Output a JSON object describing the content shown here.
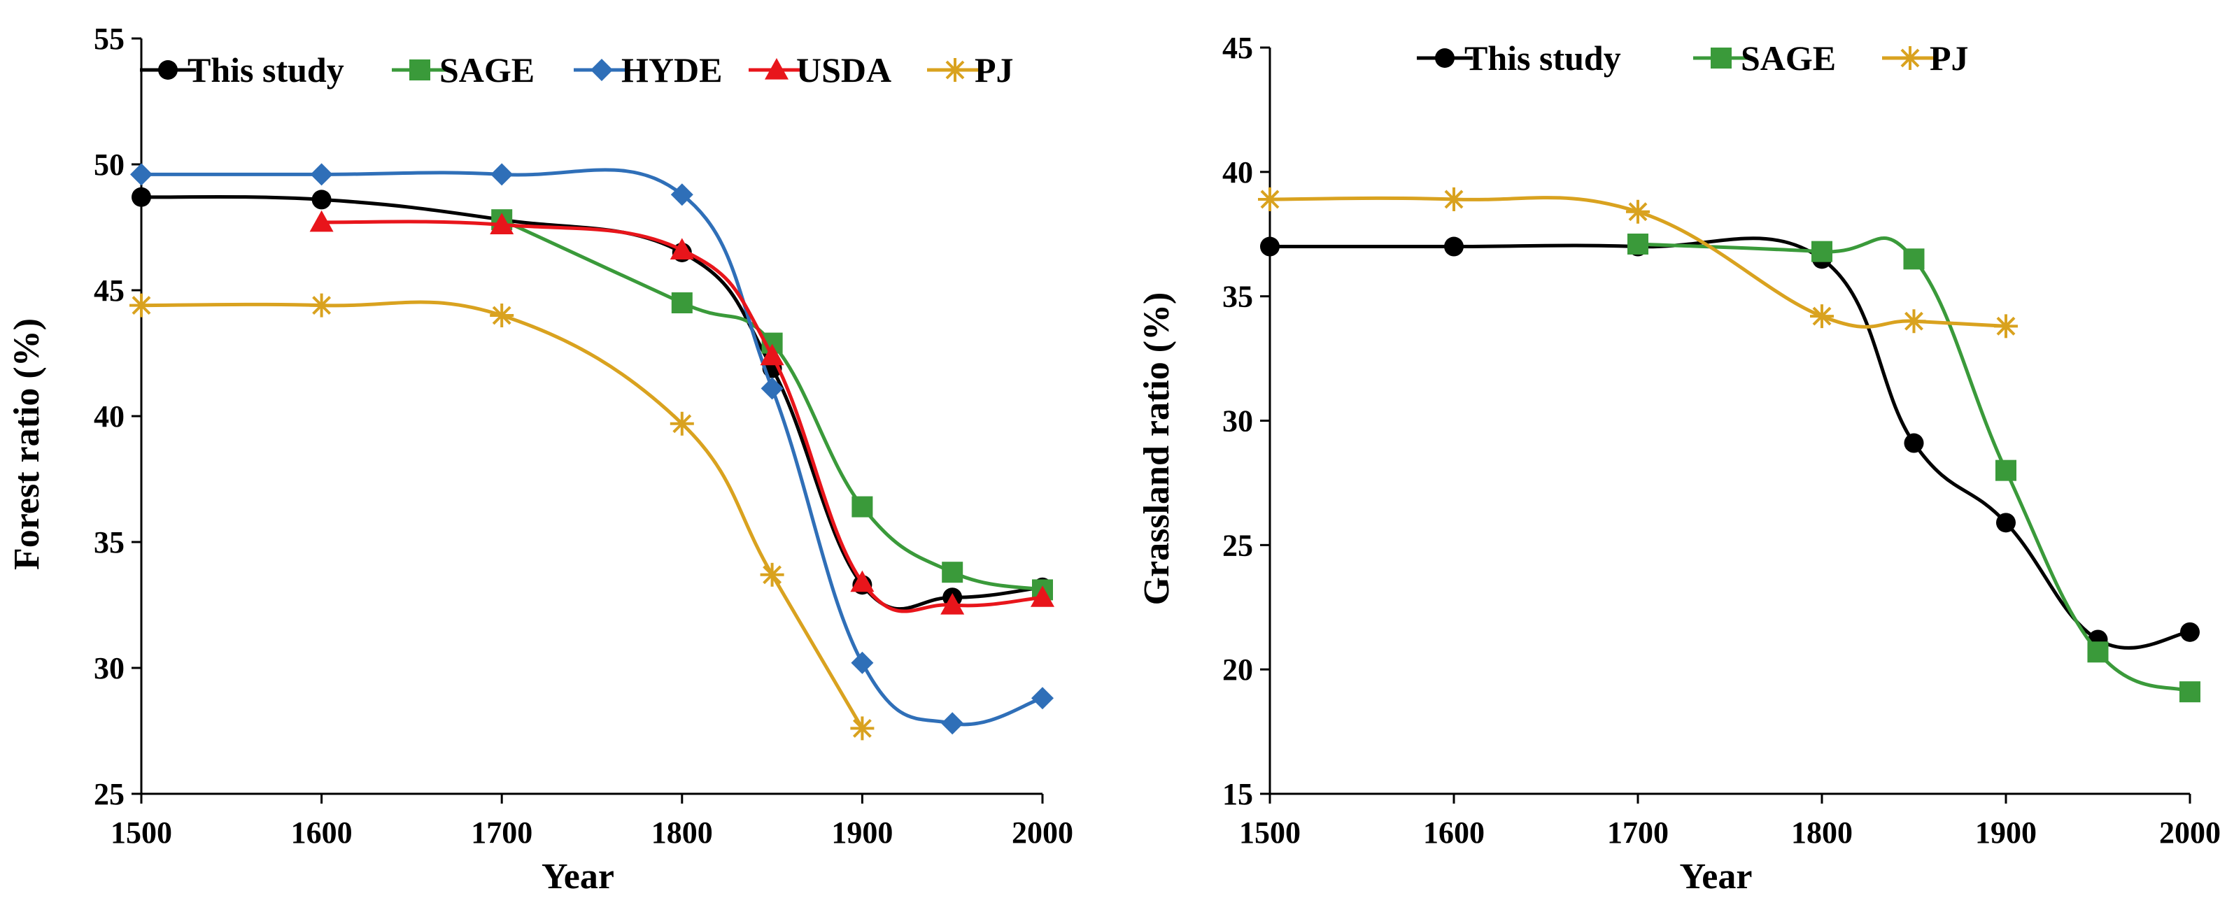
{
  "colors": {
    "This study": "#000000",
    "SAGE": "#3a9a3a",
    "HYDE": "#2f6fb8",
    "USDA": "#e8151b",
    "PJ": "#d9a21f"
  },
  "chart_data": [
    {
      "type": "line",
      "smooth": true,
      "xlabel": "Year",
      "ylabel": "Forest ratio (%)",
      "xlim": [
        1500,
        2000
      ],
      "ylim": [
        25,
        55
      ],
      "xticks": [
        1500,
        1600,
        1700,
        1800,
        1900,
        2000
      ],
      "yticks": [
        25,
        30,
        35,
        40,
        45,
        50,
        55
      ],
      "legend_position": "top",
      "series": [
        {
          "name": "This study",
          "marker": "circle",
          "x": [
            1500,
            1600,
            1700,
            1800,
            1850,
            1900,
            1950,
            2000
          ],
          "values": [
            48.7,
            48.6,
            47.8,
            46.5,
            41.9,
            33.3,
            32.8,
            33.2
          ]
        },
        {
          "name": "SAGE",
          "marker": "square",
          "x": [
            1700,
            1800,
            1850,
            1900,
            1950,
            2000
          ],
          "values": [
            47.8,
            44.5,
            42.9,
            36.4,
            33.8,
            33.1
          ]
        },
        {
          "name": "HYDE",
          "marker": "diamond",
          "x": [
            1500,
            1600,
            1700,
            1800,
            1850,
            1900,
            1950,
            2000
          ],
          "values": [
            49.6,
            49.6,
            49.6,
            48.8,
            41.1,
            30.2,
            27.8,
            28.8
          ]
        },
        {
          "name": "USDA",
          "marker": "triangle",
          "x": [
            1600,
            1700,
            1800,
            1850,
            1900,
            1950,
            2000
          ],
          "values": [
            47.7,
            47.6,
            46.6,
            42.4,
            33.4,
            32.5,
            32.8
          ]
        },
        {
          "name": "PJ",
          "marker": "star",
          "x": [
            1500,
            1600,
            1700,
            1800,
            1850,
            1900
          ],
          "values": [
            44.4,
            44.4,
            44.0,
            39.7,
            33.7,
            27.6
          ]
        }
      ]
    },
    {
      "type": "line",
      "smooth": true,
      "xlabel": "Year",
      "ylabel": "Grassland ratio (%)",
      "xlim": [
        1500,
        2000
      ],
      "ylim": [
        15,
        45
      ],
      "xticks": [
        1500,
        1600,
        1700,
        1800,
        1900,
        2000
      ],
      "yticks": [
        15,
        20,
        25,
        30,
        35,
        40,
        45
      ],
      "legend_position": "top",
      "series": [
        {
          "name": "This study",
          "marker": "circle",
          "x": [
            1500,
            1600,
            1700,
            1800,
            1850,
            1900,
            1950,
            2000
          ],
          "values": [
            37.0,
            37.0,
            37.0,
            36.5,
            29.1,
            25.9,
            21.2,
            21.5
          ]
        },
        {
          "name": "SAGE",
          "marker": "square",
          "x": [
            1700,
            1800,
            1850,
            1900,
            1950,
            2000
          ],
          "values": [
            37.1,
            36.8,
            36.5,
            28.0,
            20.7,
            19.1
          ]
        },
        {
          "name": "PJ",
          "marker": "star",
          "x": [
            1500,
            1600,
            1700,
            1800,
            1850,
            1900
          ],
          "values": [
            38.9,
            38.9,
            38.4,
            34.2,
            34.0,
            33.8
          ]
        }
      ]
    }
  ]
}
